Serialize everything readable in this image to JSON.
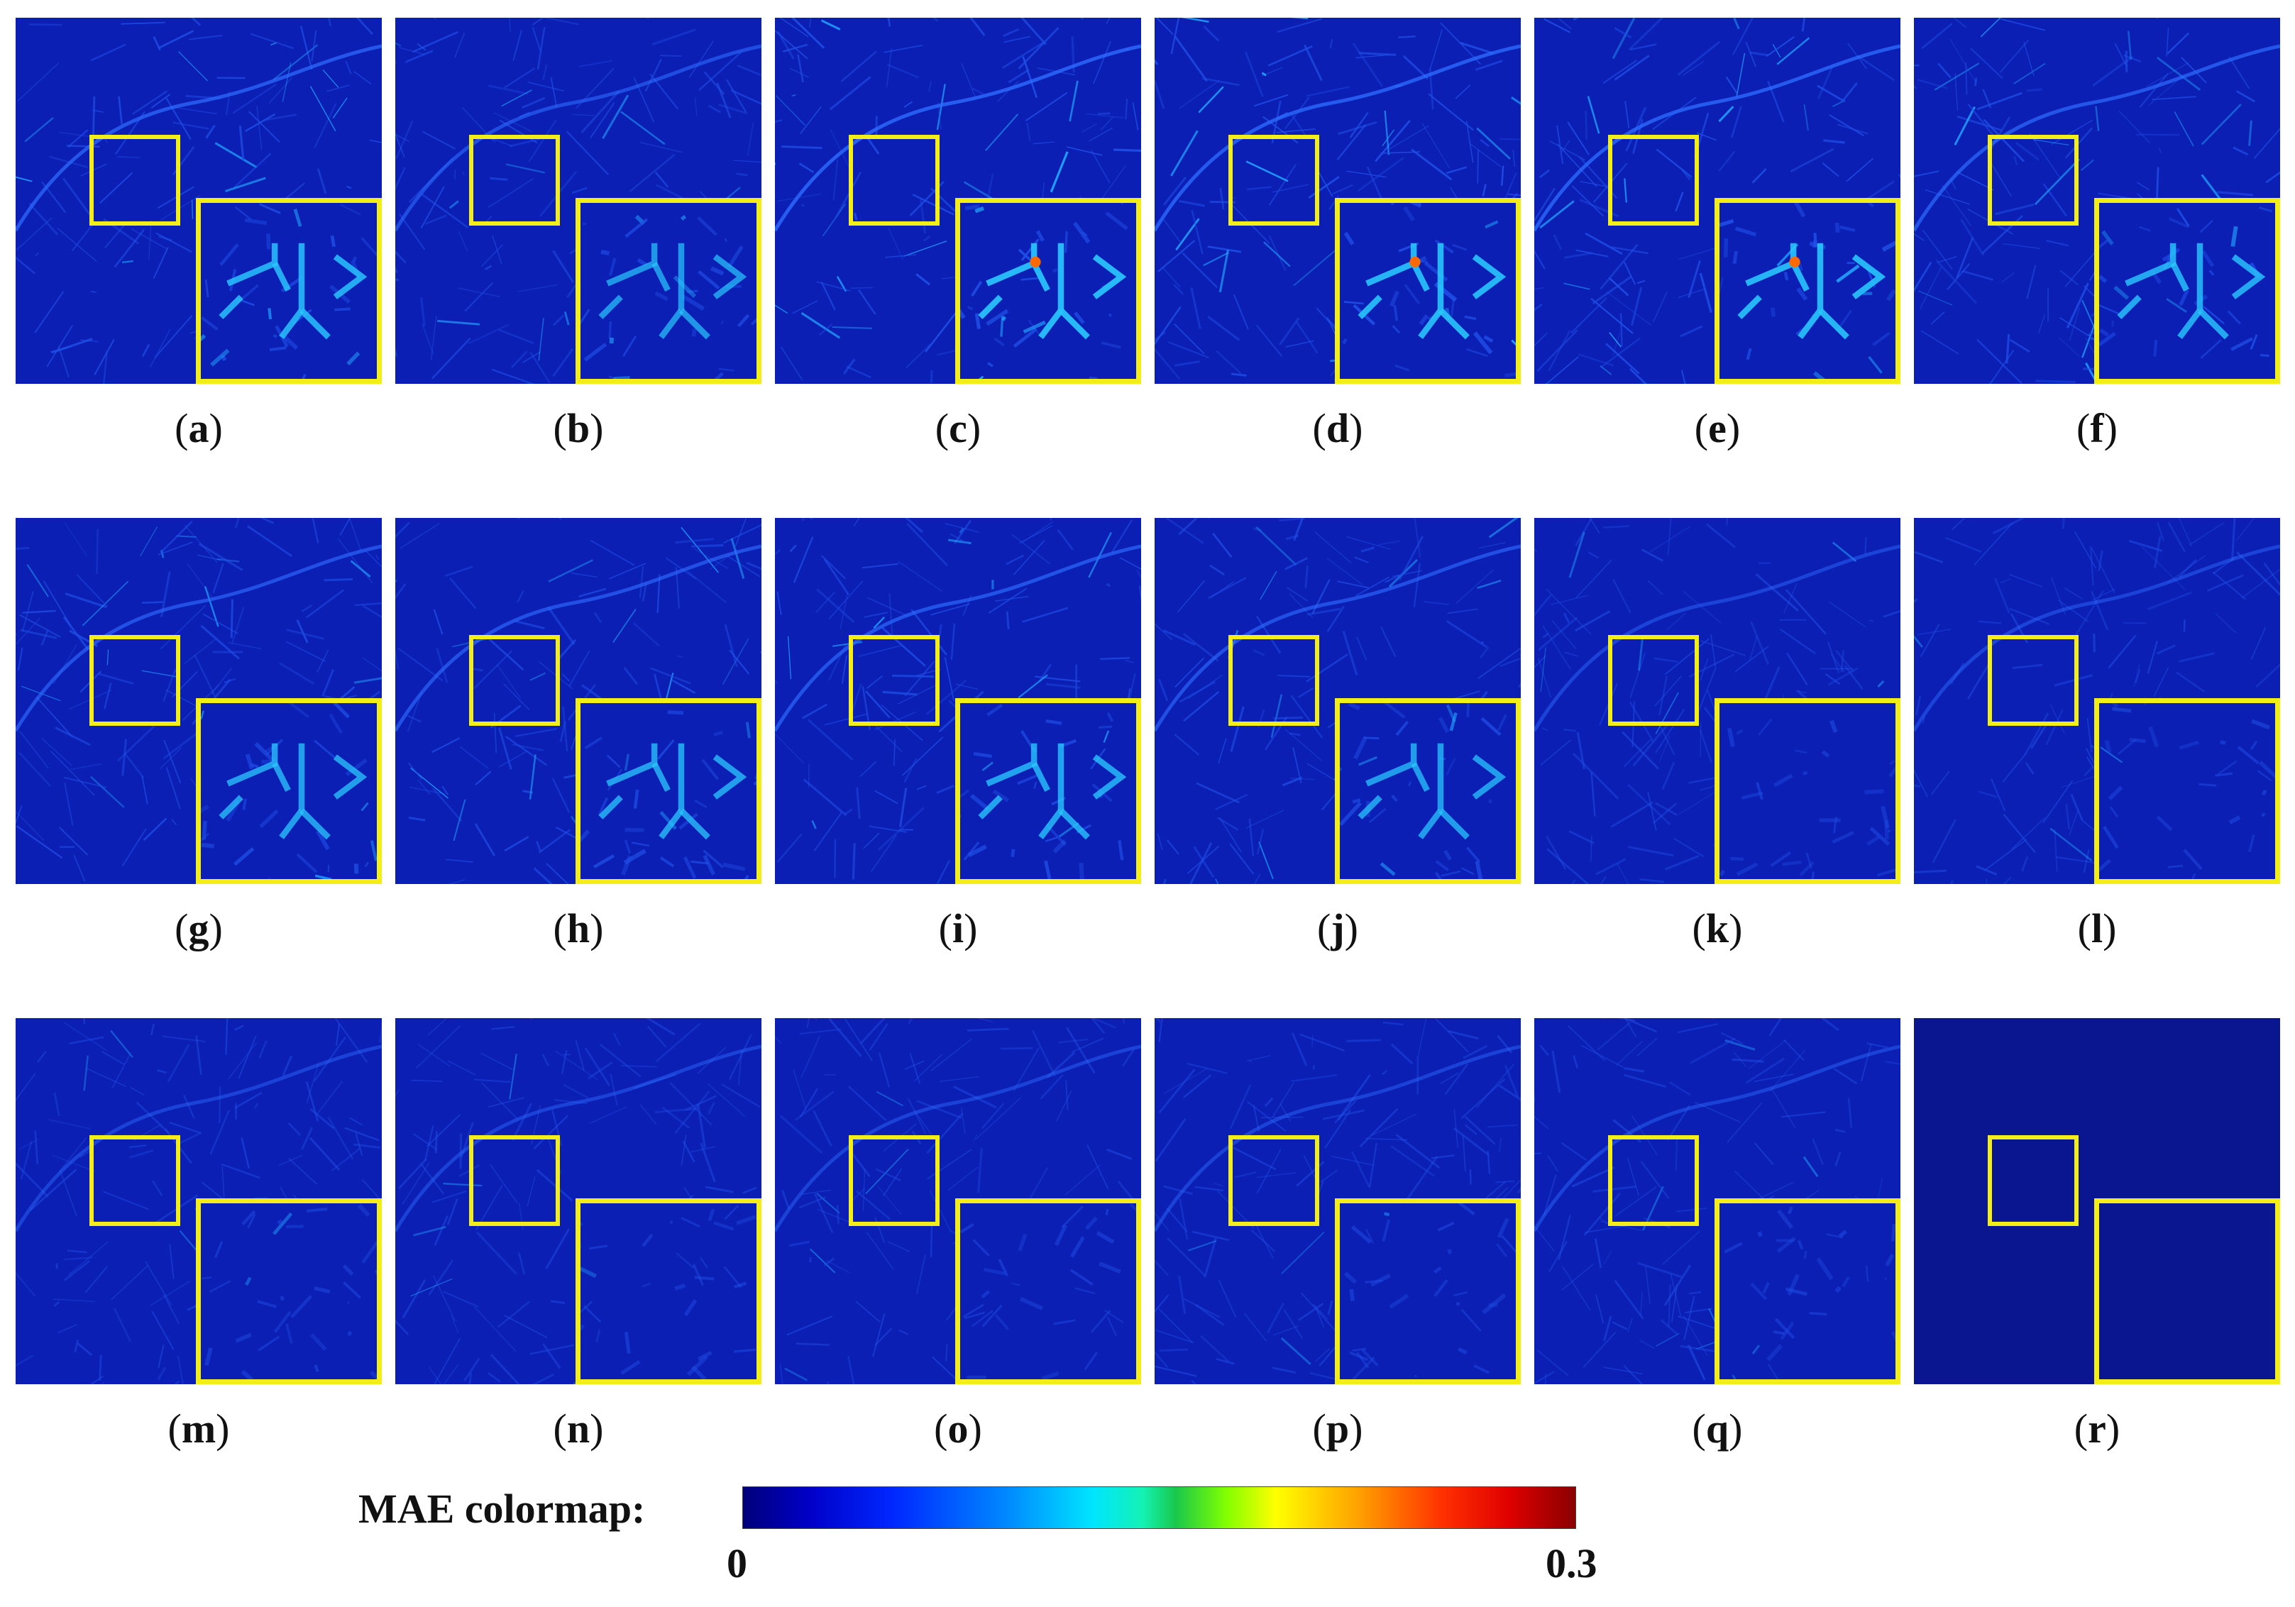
{
  "panels": [
    {
      "id": "a",
      "label": "a"
    },
    {
      "id": "b",
      "label": "b"
    },
    {
      "id": "c",
      "label": "c"
    },
    {
      "id": "d",
      "label": "d"
    },
    {
      "id": "e",
      "label": "e"
    },
    {
      "id": "f",
      "label": "f"
    },
    {
      "id": "g",
      "label": "g"
    },
    {
      "id": "h",
      "label": "h"
    },
    {
      "id": "i",
      "label": "i"
    },
    {
      "id": "j",
      "label": "j"
    },
    {
      "id": "k",
      "label": "k"
    },
    {
      "id": "l",
      "label": "l"
    },
    {
      "id": "m",
      "label": "m"
    },
    {
      "id": "n",
      "label": "n"
    },
    {
      "id": "o",
      "label": "o"
    },
    {
      "id": "p",
      "label": "p"
    },
    {
      "id": "q",
      "label": "q"
    },
    {
      "id": "r",
      "label": "r"
    }
  ],
  "colorbar": {
    "title": "MAE colormap:",
    "min_label": "0",
    "max_label": "0.3",
    "min": 0,
    "max": 0.3
  },
  "colors": {
    "background_map": "#0c1fb4",
    "highlight_box": "#f4ee18"
  }
}
